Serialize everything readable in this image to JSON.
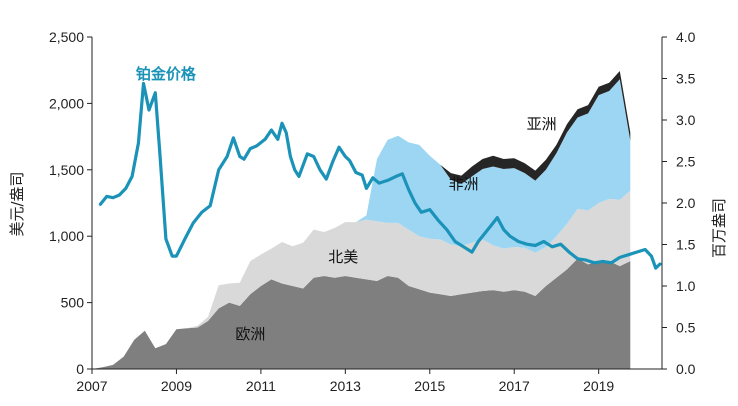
{
  "chart_data": {
    "type": "area",
    "title": "",
    "x_start": 2007.0,
    "x_step_years": 0.25,
    "xlim": [
      2007,
      2020.5
    ],
    "x_ticks": [
      "2007",
      "2009",
      "2011",
      "2013",
      "2015",
      "2017",
      "2019"
    ],
    "y_left": {
      "label": "美元/盎司",
      "ylim": [
        0,
        2500
      ],
      "ticks": [
        "0",
        "500",
        "1,000",
        "1,500",
        "2,000",
        "2,500"
      ]
    },
    "y_right": {
      "label": "百万盎司",
      "ylim": [
        0,
        4.0
      ],
      "ticks": [
        "0.0",
        "0.5",
        "1.0",
        "1.5",
        "2.0",
        "2.5",
        "3.0",
        "3.5",
        "4.0"
      ]
    },
    "colors": {
      "europe": "#7f7f7f",
      "north_america": "#d9d9d9",
      "africa": "#9dd6f3",
      "asia": "#262626",
      "price": "#1b93b8"
    },
    "stack_series": [
      {
        "name": "欧洲",
        "key": "europe",
        "axis": "right",
        "values": [
          0.0,
          0.02,
          0.05,
          0.15,
          0.35,
          0.46,
          0.25,
          0.3,
          0.48,
          0.49,
          0.5,
          0.58,
          0.73,
          0.8,
          0.76,
          0.9,
          1.0,
          1.08,
          1.03,
          1.0,
          0.97,
          1.1,
          1.12,
          1.1,
          1.12,
          1.1,
          1.08,
          1.06,
          1.12,
          1.1,
          1.0,
          0.96,
          0.92,
          0.9,
          0.88,
          0.9,
          0.92,
          0.94,
          0.95,
          0.93,
          0.95,
          0.93,
          0.88,
          1.0,
          1.1,
          1.2,
          1.33,
          1.26,
          1.3,
          1.3,
          1.24,
          1.3
        ]
      },
      {
        "name": "北美",
        "key": "north_america",
        "axis": "right",
        "values": [
          0.0,
          0.0,
          0.0,
          0.0,
          0.0,
          0.0,
          0.0,
          0.0,
          0.0,
          0.0,
          0.02,
          0.05,
          0.28,
          0.23,
          0.28,
          0.4,
          0.38,
          0.37,
          0.5,
          0.48,
          0.55,
          0.58,
          0.53,
          0.6,
          0.65,
          0.67,
          0.72,
          0.72,
          0.64,
          0.66,
          0.68,
          0.64,
          0.65,
          0.66,
          0.62,
          0.58,
          0.6,
          0.62,
          0.54,
          0.52,
          0.52,
          0.53,
          0.52,
          0.47,
          0.5,
          0.55,
          0.6,
          0.65,
          0.7,
          0.75,
          0.8,
          0.85
        ]
      },
      {
        "name": "非洲",
        "key": "africa",
        "axis": "right",
        "values": [
          0.0,
          0.0,
          0.0,
          0.0,
          0.0,
          0.0,
          0.0,
          0.0,
          0.0,
          0.0,
          0.0,
          0.0,
          0.0,
          0.0,
          0.0,
          0.0,
          0.0,
          0.0,
          0.0,
          0.0,
          0.0,
          0.0,
          0.0,
          0.0,
          0.0,
          0.0,
          0.05,
          0.75,
          1.0,
          1.05,
          1.05,
          1.1,
          1.0,
          0.9,
          0.78,
          0.75,
          0.8,
          0.85,
          0.95,
          0.96,
          0.95,
          0.9,
          0.87,
          0.93,
          1.0,
          1.1,
          1.1,
          1.17,
          1.3,
          1.3,
          1.45,
          0.6
        ]
      },
      {
        "name": "亚洲",
        "key": "asia",
        "axis": "right",
        "values": [
          0.0,
          0.0,
          0.0,
          0.0,
          0.0,
          0.0,
          0.0,
          0.0,
          0.0,
          0.0,
          0.0,
          0.0,
          0.0,
          0.0,
          0.0,
          0.0,
          0.0,
          0.0,
          0.0,
          0.0,
          0.0,
          0.0,
          0.0,
          0.0,
          0.0,
          0.0,
          0.0,
          0.0,
          0.0,
          0.0,
          0.0,
          0.0,
          0.0,
          0.0,
          0.08,
          0.1,
          0.12,
          0.12,
          0.13,
          0.12,
          0.12,
          0.12,
          0.12,
          0.12,
          0.1,
          0.1,
          0.1,
          0.1,
          0.1,
          0.1,
          0.1,
          0.1
        ]
      }
    ],
    "price_series": {
      "name": "铂金价格",
      "axis": "left",
      "x": [
        2007.2,
        2007.35,
        2007.5,
        2007.65,
        2007.8,
        2007.95,
        2008.1,
        2008.22,
        2008.35,
        2008.5,
        2008.6,
        2008.75,
        2008.9,
        2009.0,
        2009.2,
        2009.4,
        2009.6,
        2009.8,
        2010.0,
        2010.2,
        2010.35,
        2010.5,
        2010.6,
        2010.75,
        2010.9,
        2011.1,
        2011.25,
        2011.4,
        2011.5,
        2011.6,
        2011.7,
        2011.8,
        2011.9,
        2012.1,
        2012.25,
        2012.4,
        2012.55,
        2012.7,
        2012.85,
        2013.0,
        2013.1,
        2013.25,
        2013.4,
        2013.5,
        2013.65,
        2013.8,
        2014.0,
        2014.2,
        2014.35,
        2014.5,
        2014.65,
        2014.8,
        2015.0,
        2015.2,
        2015.4,
        2015.6,
        2015.8,
        2016.0,
        2016.15,
        2016.3,
        2016.45,
        2016.6,
        2016.75,
        2016.9,
        2017.1,
        2017.3,
        2017.5,
        2017.7,
        2017.9,
        2018.1,
        2018.3,
        2018.5,
        2018.7,
        2018.9,
        2019.1,
        2019.3,
        2019.5,
        2019.7,
        2019.9,
        2020.1,
        2020.25,
        2020.35,
        2020.45
      ],
      "values": [
        1240,
        1300,
        1290,
        1310,
        1360,
        1450,
        1700,
        2150,
        1950,
        2080,
        1650,
        980,
        850,
        850,
        980,
        1100,
        1180,
        1230,
        1500,
        1600,
        1740,
        1600,
        1580,
        1660,
        1680,
        1730,
        1800,
        1730,
        1850,
        1780,
        1600,
        1500,
        1450,
        1620,
        1600,
        1500,
        1430,
        1560,
        1670,
        1600,
        1570,
        1480,
        1460,
        1360,
        1440,
        1400,
        1420,
        1450,
        1470,
        1350,
        1250,
        1180,
        1200,
        1120,
        1050,
        960,
        920,
        880,
        960,
        1020,
        1080,
        1140,
        1050,
        1000,
        960,
        940,
        930,
        960,
        920,
        940,
        880,
        830,
        820,
        800,
        810,
        800,
        840,
        860,
        880,
        900,
        850,
        760,
        790
      ]
    },
    "annotations": [
      {
        "text": "铂金价格",
        "x": 2008.75,
        "y_left": 2220
      },
      {
        "text": "亚洲",
        "x": 2017.65,
        "y_right": 2.95
      },
      {
        "text": "非洲",
        "x": 2015.8,
        "y_right": 2.23
      },
      {
        "text": "北美",
        "x": 2012.95,
        "y_right": 1.35
      },
      {
        "text": "欧洲",
        "x": 2010.75,
        "y_right": 0.42
      }
    ]
  }
}
